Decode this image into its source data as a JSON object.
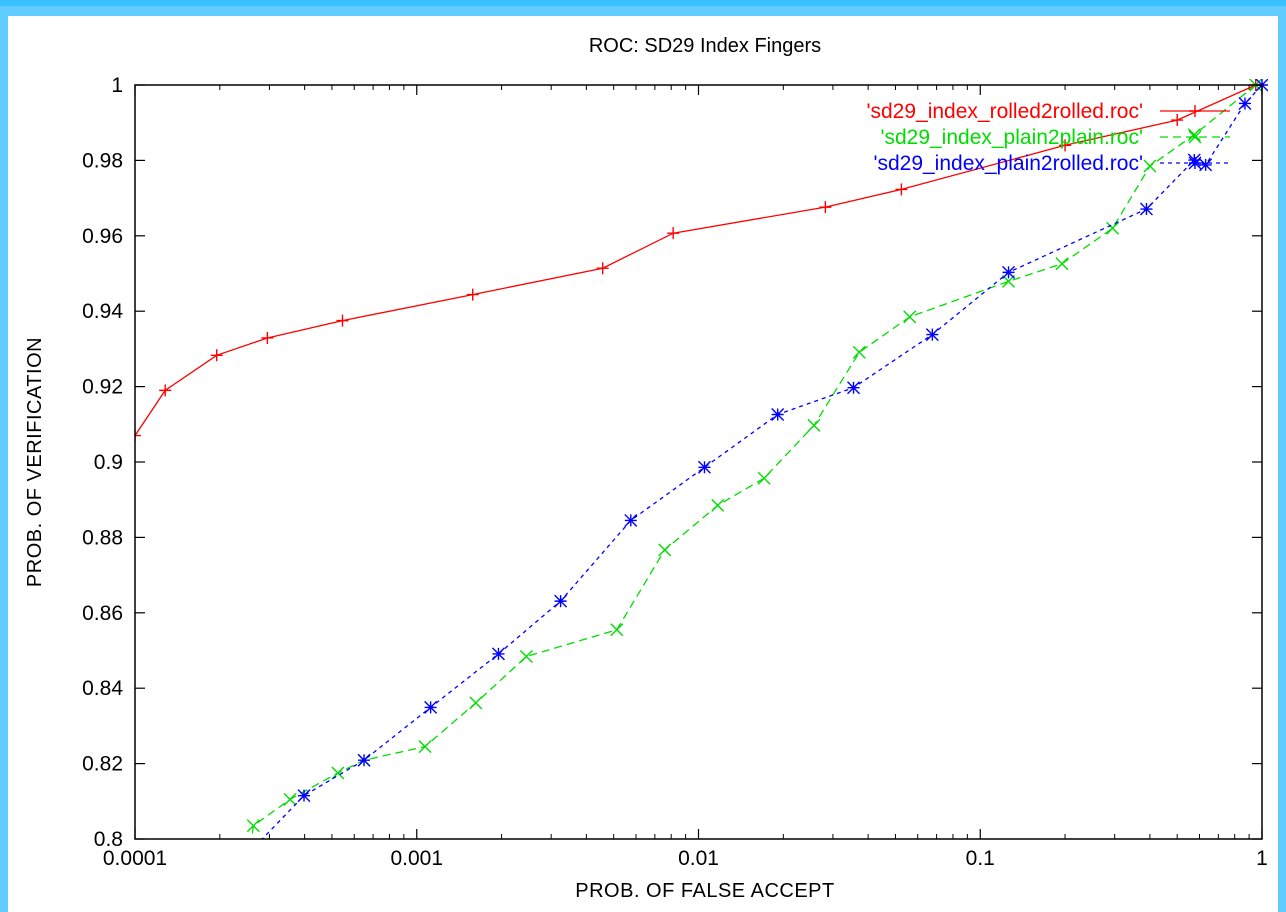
{
  "colors": {
    "frame": "#39c2ff",
    "background": "#ffffff"
  },
  "chart_data": {
    "type": "line",
    "title": "ROC: SD29 Index Fingers",
    "xlabel": "PROB. OF FALSE ACCEPT",
    "ylabel": "PROB. OF VERIFICATION",
    "xscale": "log",
    "xlim": [
      0.0001,
      1
    ],
    "ylim": [
      0.8,
      1
    ],
    "xticks": [
      {
        "value": 0.0001,
        "label": "0.0001"
      },
      {
        "value": 0.001,
        "label": "0.001"
      },
      {
        "value": 0.01,
        "label": "0.01"
      },
      {
        "value": 0.1,
        "label": "0.1"
      },
      {
        "value": 1,
        "label": "1"
      }
    ],
    "yticks": [
      {
        "value": 0.8,
        "label": "0.8"
      },
      {
        "value": 0.82,
        "label": "0.82"
      },
      {
        "value": 0.84,
        "label": "0.84"
      },
      {
        "value": 0.86,
        "label": "0.86"
      },
      {
        "value": 0.88,
        "label": "0.88"
      },
      {
        "value": 0.9,
        "label": "0.9"
      },
      {
        "value": 0.92,
        "label": "0.92"
      },
      {
        "value": 0.94,
        "label": "0.94"
      },
      {
        "value": 0.96,
        "label": "0.96"
      },
      {
        "value": 0.98,
        "label": "0.98"
      },
      {
        "value": 1,
        "label": "1"
      }
    ],
    "grid": false,
    "legend_position": "top-right",
    "series": [
      {
        "name": "'sd29_index_rolled2rolled.roc'",
        "color": "#ff0000",
        "line_style": "solid",
        "marker": "+",
        "points": [
          [
            0.0001,
            0.907
          ],
          [
            0.000128,
            0.919
          ],
          [
            0.000195,
            0.9283
          ],
          [
            0.000295,
            0.9329
          ],
          [
            0.000545,
            0.9375
          ],
          [
            0.00158,
            0.9444
          ],
          [
            0.00457,
            0.9514
          ],
          [
            0.00813,
            0.9607
          ],
          [
            0.0282,
            0.9676
          ],
          [
            0.0525,
            0.9723
          ],
          [
            0.2,
            0.984
          ],
          [
            0.5,
            0.9907
          ],
          [
            0.95,
            1.0
          ]
        ]
      },
      {
        "name": "'sd29_index_plain2plain.roc'",
        "color": "#00dd00",
        "line_style": "dashed",
        "marker": "x",
        "points": [
          [
            0.000258,
            0.798
          ],
          [
            0.000263,
            0.8035
          ],
          [
            0.000355,
            0.8105
          ],
          [
            0.000525,
            0.8175
          ],
          [
            0.00065,
            0.8209
          ],
          [
            0.00107,
            0.8245
          ],
          [
            0.00162,
            0.8361
          ],
          [
            0.00245,
            0.8484
          ],
          [
            0.00513,
            0.8555
          ],
          [
            0.00759,
            0.8767
          ],
          [
            0.0117,
            0.8885
          ],
          [
            0.0171,
            0.8957
          ],
          [
            0.0257,
            0.9097
          ],
          [
            0.0372,
            0.9291
          ],
          [
            0.0562,
            0.9385
          ],
          [
            0.126,
            0.9479
          ],
          [
            0.195,
            0.9526
          ],
          [
            0.295,
            0.962
          ],
          [
            0.4,
            0.9785
          ],
          [
            0.575,
            0.9868
          ],
          [
            0.95,
            1.0
          ]
        ]
      },
      {
        "name": "'sd29_index_plain2rolled.roc'",
        "color": "#0000ff",
        "line_style": "dotted",
        "marker": "*",
        "points": [
          [
            0.000255,
            0.7965
          ],
          [
            0.000398,
            0.8115
          ],
          [
            0.00065,
            0.8209
          ],
          [
            0.00112,
            0.8349
          ],
          [
            0.00195,
            0.8491
          ],
          [
            0.00324,
            0.8631
          ],
          [
            0.00575,
            0.8845
          ],
          [
            0.0105,
            0.8986
          ],
          [
            0.0191,
            0.9126
          ],
          [
            0.0355,
            0.9197
          ],
          [
            0.0676,
            0.9338
          ],
          [
            0.126,
            0.9503
          ],
          [
            0.389,
            0.9671
          ],
          [
            0.575,
            0.9801
          ],
          [
            0.631,
            0.9788
          ],
          [
            0.87,
            0.9951
          ],
          [
            1.0,
            1.0
          ]
        ]
      }
    ]
  }
}
